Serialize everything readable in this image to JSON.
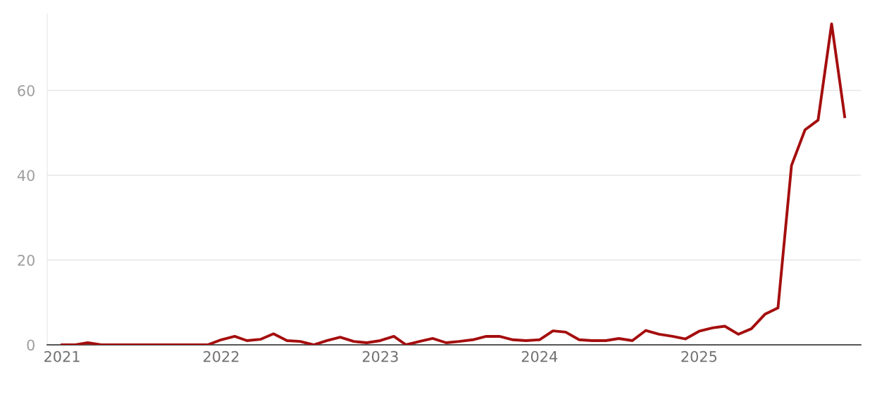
{
  "chart_data": {
    "type": "line",
    "x": [
      "2021-01",
      "2021-02",
      "2021-03",
      "2021-04",
      "2021-05",
      "2021-06",
      "2021-07",
      "2021-08",
      "2021-09",
      "2021-10",
      "2021-11",
      "2021-12",
      "2022-01",
      "2022-02",
      "2022-03",
      "2022-04",
      "2022-05",
      "2022-06",
      "2022-07",
      "2022-08",
      "2022-09",
      "2022-10",
      "2022-11",
      "2022-12",
      "2023-01",
      "2023-02",
      "2023-03",
      "2023-04",
      "2023-05",
      "2023-06",
      "2023-07",
      "2023-08",
      "2023-09",
      "2023-10",
      "2023-11",
      "2023-12",
      "2024-01",
      "2024-02",
      "2024-03",
      "2024-04",
      "2024-05",
      "2024-06",
      "2024-07",
      "2024-08",
      "2024-09",
      "2024-10",
      "2024-11",
      "2024-12",
      "2025-01",
      "2025-02",
      "2025-03",
      "2025-04",
      "2025-05",
      "2025-06",
      "2025-07",
      "2025-08",
      "2025-09",
      "2025-10",
      "2025-11",
      "2025-12"
    ],
    "series": [
      {
        "color": "#a50e0e",
        "values": [
          0,
          0,
          0.5,
          0,
          0,
          0,
          0,
          0,
          0,
          0,
          0,
          0,
          1.2,
          2,
          1,
          1.3,
          2.6,
          1,
          0.8,
          0,
          1,
          1.8,
          0.8,
          0.5,
          1,
          2,
          0,
          0.8,
          1.5,
          0.5,
          0.8,
          1.2,
          2,
          2,
          1.2,
          1,
          1.2,
          3.3,
          3,
          1.2,
          1,
          1,
          1.5,
          1,
          3.4,
          2.5,
          2,
          1.4,
          3.2,
          4,
          4.4,
          2.5,
          3.8,
          7.2,
          8.7,
          42.3,
          50.7,
          53,
          75.7,
          53.8
        ]
      }
    ],
    "xlim": [
      "2020-11-28",
      "2026-01-07"
    ],
    "xticks": [
      {
        "value": "2021-01-01",
        "label": "2021"
      },
      {
        "value": "2022-01-01",
        "label": "2022"
      },
      {
        "value": "2023-01-01",
        "label": "2023"
      },
      {
        "value": "2024-01-01",
        "label": "2024"
      },
      {
        "value": "2025-01-01",
        "label": "2025"
      }
    ],
    "ylim": [
      0,
      78
    ],
    "yticks": [
      0,
      20,
      40,
      60
    ],
    "grid": "y",
    "marker": "none",
    "line_style": "solid"
  }
}
